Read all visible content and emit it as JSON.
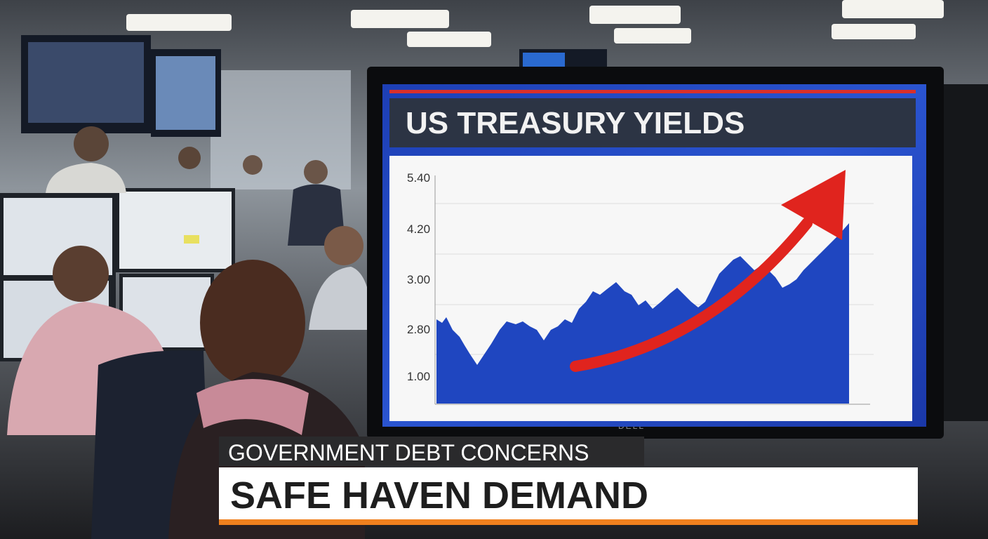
{
  "screen": {
    "title": "US TREASURY YIELDS",
    "axis_labels": [
      "5.40",
      "4.20",
      "3.00",
      "2.80",
      "1.00"
    ]
  },
  "monitor": {
    "brand": "DELL"
  },
  "lower_third": {
    "kicker": "GOVERNMENT DEBT CONCERNS",
    "headline": "SAFE HAVEN DEMAND"
  }
}
